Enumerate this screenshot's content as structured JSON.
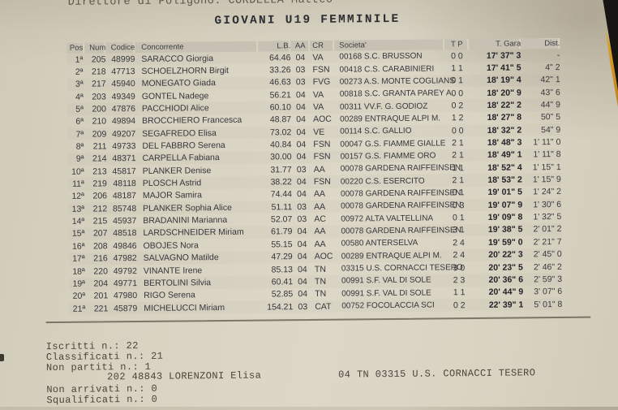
{
  "page": {
    "top_line": "Direttore di Poligono: CORDELLA Matteo",
    "title": "GIOVANI U19 FEMMINILE"
  },
  "table": {
    "headers": [
      "Pos",
      "Num",
      "Codice",
      "Concorrente",
      "L.B.",
      "AA",
      "CR",
      "Societa'",
      "T P",
      "T. Gara",
      "Dist."
    ],
    "rows": [
      [
        "1ª",
        "205",
        "48999",
        "SARACCO Giorgia",
        "64.46",
        "04",
        "VA",
        "00168 S.C. BRUSSON",
        "0 0",
        "17' 37\" 3",
        "-"
      ],
      [
        "2ª",
        "218",
        "47713",
        "SCHOELZHORN Birgit",
        "33.26",
        "03",
        "FSN",
        "00418 C.S. CARABINIERI",
        "1 1",
        "17' 41\" 5",
        "4\" 2"
      ],
      [
        "3ª",
        "217",
        "45940",
        "MONEGATO Giada",
        "46.63",
        "03",
        "FVG",
        "00273 A.S. MONTE COGLIANS",
        "0 1",
        "18' 19\" 4",
        "42\" 1"
      ],
      [
        "4ª",
        "203",
        "49349",
        "GONTEL Nadege",
        "56.21",
        "04",
        "VA",
        "00818 S.C. GRANTA PAREY A.",
        "0 0",
        "18' 20\" 9",
        "43\" 6"
      ],
      [
        "5ª",
        "200",
        "47876",
        "PACCHIODI Alice",
        "60.10",
        "04",
        "VA",
        "00311 VV.F. G. GODIOZ",
        "0 2",
        "18' 22\" 2",
        "44\" 9"
      ],
      [
        "6ª",
        "210",
        "49894",
        "BROCCHIERO Francesca",
        "48.87",
        "04",
        "AOC",
        "00289 ENTRAQUE ALPI M.",
        "1 2",
        "18' 27\" 8",
        "50\" 5"
      ],
      [
        "7ª",
        "209",
        "49207",
        "SEGAFREDO Elisa",
        "73.02",
        "04",
        "VE",
        "00114 S.C. GALLIO",
        "0 0",
        "18' 32\" 2",
        "54\" 9"
      ],
      [
        "8ª",
        "211",
        "49733",
        "DEL FABBRO Serena",
        "40.84",
        "04",
        "FSN",
        "00047 G.S. FIAMME GIALLE",
        "2 1",
        "18' 48\" 3",
        "1' 11\" 0"
      ],
      [
        "9ª",
        "214",
        "48371",
        "CARPELLA Fabiana",
        "30.00",
        "04",
        "FSN",
        "00157 G.S. FIAMME ORO",
        "2 1",
        "18' 49\" 1",
        "1' 11\" 8"
      ],
      [
        "10ª",
        "213",
        "45817",
        "PLANKER Denise",
        "31.77",
        "03",
        "AA",
        "00078 GARDENA RAIFFEINSEN",
        "1 1",
        "18' 52\" 4",
        "1' 15\" 1"
      ],
      [
        "11ª",
        "219",
        "48118",
        "PLOSCH Astrid",
        "38.22",
        "04",
        "FSN",
        "00220 C.S. ESERCITO",
        "2 1",
        "18' 53\" 2",
        "1' 15\" 9"
      ],
      [
        "12ª",
        "206",
        "48187",
        "MAJOR Samira",
        "74.44",
        "04",
        "AA",
        "00078 GARDENA RAIFFEINSEN",
        "0 1",
        "19' 01\" 5",
        "1' 24\" 2"
      ],
      [
        "13ª",
        "212",
        "85748",
        "PLANKER Sophia Alice",
        "51.11",
        "03",
        "AA",
        "00078 GARDENA RAIFFEINSEN",
        "0 3",
        "19' 07\" 9",
        "1' 30\" 6"
      ],
      [
        "14ª",
        "215",
        "45937",
        "BRADANINI Marianna",
        "52.07",
        "03",
        "AC",
        "00972 ALTA VALTELLINA",
        "0 1",
        "19' 09\" 8",
        "1' 32\" 5"
      ],
      [
        "15ª",
        "207",
        "48518",
        "LARDSCHNEIDER Miriam",
        "61.79",
        "04",
        "AA",
        "00078 GARDENA RAIFFEINSEN",
        "3 1",
        "19' 38\" 5",
        "2' 01\" 2"
      ],
      [
        "16ª",
        "208",
        "49846",
        "OBOJES Nora",
        "55.15",
        "04",
        "AA",
        "00580 ANTERSELVA",
        "2 4",
        "19' 59\" 0",
        "2' 21\" 7"
      ],
      [
        "17ª",
        "216",
        "47982",
        "SALVAGNO Matilde",
        "47.29",
        "04",
        "AOC",
        "00289 ENTRAQUE ALPI M.",
        "2 4",
        "20' 22\" 3",
        "2' 45\" 0"
      ],
      [
        "18ª",
        "220",
        "49792",
        "VINANTE Irene",
        "85.13",
        "04",
        "TN",
        "03315 U.S. CORNACCI TESERO",
        "3 0",
        "20' 23\" 5",
        "2' 46\" 2"
      ],
      [
        "19ª",
        "204",
        "49771",
        "BERTOLINI Silvia",
        "60.41",
        "04",
        "TN",
        "00991 S.F. VAL DI SOLE",
        "2 3",
        "20' 36\" 6",
        "2' 59\" 3"
      ],
      [
        "20ª",
        "201",
        "47980",
        "RIGO Serena",
        "52.85",
        "04",
        "TN",
        "00991 S.F. VAL DI SOLE",
        "1 1",
        "20' 44\" 9",
        "3' 07\" 6"
      ],
      [
        "21ª",
        "221",
        "45879",
        "MICHELUCCI Miriam",
        "154.21",
        "03",
        "CAT",
        "00752 FOCOLACCIA SCI",
        "0 2",
        "22' 39\" 1",
        "5' 01\" 8"
      ]
    ]
  },
  "footer": {
    "iscritti": "Iscritti n.: 22",
    "classificati": "Classificati n.: 21",
    "non_partiti": "Non partiti n.: 1",
    "non_partiti_entry": "202 48843  LORENZONI Elisa",
    "non_partiti_club": "04 TN  03315 U.S. CORNACCI TESERO",
    "non_arrivati": "Non arrivati n.: 0",
    "squalificati": "Squalificati n.: 0"
  },
  "colors": {
    "paper": "#d9d3c2",
    "header_band": "#c6c1b2",
    "ink": "#35353b",
    "ink_bold": "#222228",
    "typewriter_ink": "#4a443a",
    "photo_corner": "#171411",
    "corner_accent": "#d99b27"
  }
}
